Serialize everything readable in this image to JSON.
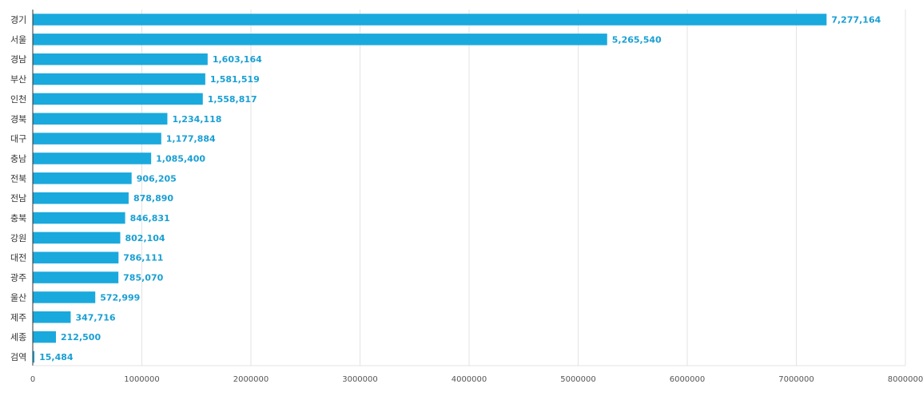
{
  "chart_data": {
    "type": "bar",
    "orientation": "horizontal",
    "categories": [
      "경기",
      "서울",
      "경남",
      "부산",
      "인천",
      "경북",
      "대구",
      "충남",
      "전북",
      "전남",
      "충북",
      "강원",
      "대전",
      "광주",
      "울산",
      "제주",
      "세종",
      "검역"
    ],
    "values": [
      7277164,
      5265540,
      1603164,
      1581519,
      1558817,
      1234118,
      1177884,
      1085400,
      906205,
      878890,
      846831,
      802104,
      786111,
      785070,
      572999,
      347716,
      212500,
      15484
    ],
    "value_labels": [
      "7,277,164",
      "5,265,540",
      "1,603,164",
      "1,581,519",
      "1,558,817",
      "1,234,118",
      "1,177,884",
      "1,085,400",
      "906,205",
      "878,890",
      "846,831",
      "802,104",
      "786,111",
      "785,070",
      "572,999",
      "347,716",
      "212,500",
      "15,484"
    ],
    "xlim": [
      0,
      8000000
    ],
    "x_ticks": [
      0,
      1000000,
      2000000,
      3000000,
      4000000,
      5000000,
      6000000,
      7000000,
      8000000
    ],
    "x_tick_labels": [
      "0",
      "1000000",
      "2000000",
      "3000000",
      "4000000",
      "5000000",
      "6000000",
      "7000000",
      "8000000"
    ],
    "grid": "vertical",
    "legend": "none",
    "bar_color": "#1aa9dd",
    "label_color": "#1a9fd3"
  }
}
